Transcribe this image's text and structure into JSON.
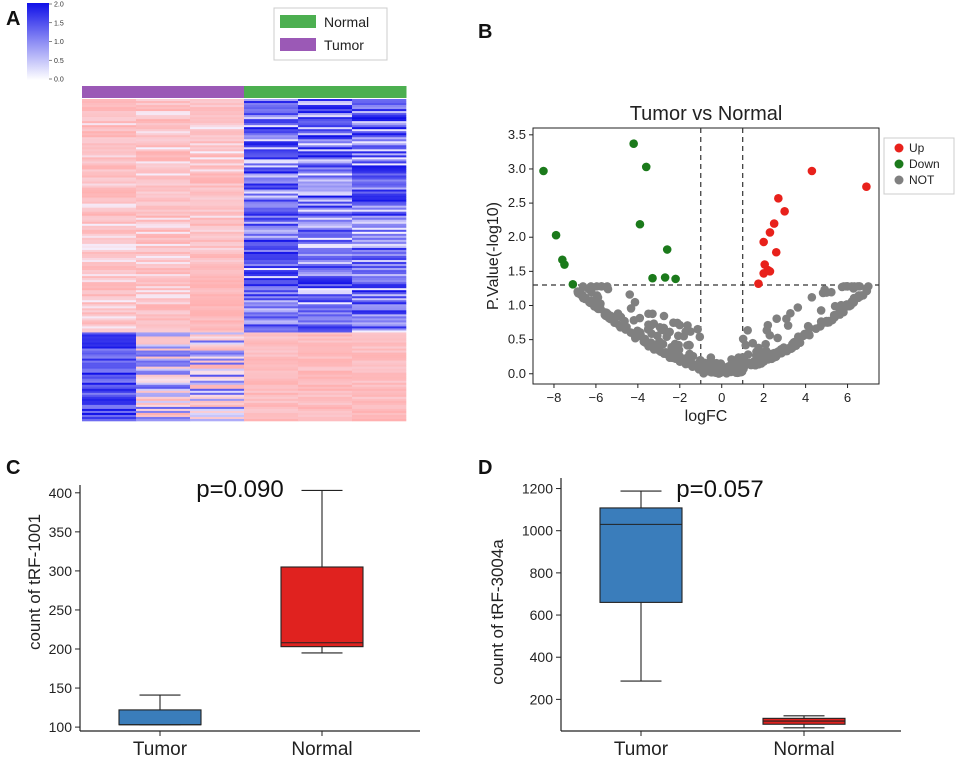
{
  "panels": {
    "a": "A",
    "b": "B",
    "c": "C",
    "d": "D"
  },
  "colors": {
    "normal": "#4caf50",
    "tumor": "#9b59b6",
    "heat_low": "#ff9f9f",
    "heat_high": "#1010e8",
    "up": "#e8211b",
    "down": "#1b7a1b",
    "not": "#808080",
    "box_tumor": "#3a7dbb",
    "box_normal": "#e0221f"
  },
  "chart_data": [
    {
      "type": "heatmap",
      "panel": "A",
      "colorbar": {
        "ticks": [
          "2.0",
          "1.5",
          "1.0",
          "0.5",
          "0.0"
        ],
        "range": [
          0,
          2
        ]
      },
      "legend": [
        {
          "label": "Normal",
          "color": "#4caf50"
        },
        {
          "label": "Tumor",
          "color": "#9b59b6"
        }
      ],
      "groups": [
        "Tumor",
        "Tumor",
        "Tumor",
        "Normal",
        "Normal",
        "Normal"
      ]
    },
    {
      "type": "scatter",
      "panel": "B",
      "title": "Tumor vs Normal",
      "xlabel": "logFC",
      "ylabel": "P.Value(-log10)",
      "xlim": [
        -9,
        7.5
      ],
      "ylim": [
        -0.15,
        3.6
      ],
      "xticks": [
        "−8",
        "−6",
        "−4",
        "−2",
        "0",
        "2",
        "4",
        "6"
      ],
      "xtick_values": [
        -8,
        -6,
        -4,
        -2,
        0,
        2,
        4,
        6
      ],
      "yticks": [
        "0.0",
        "0.5",
        "1.0",
        "1.5",
        "2.0",
        "2.5",
        "3.0",
        "3.5"
      ],
      "ytick_values": [
        0,
        0.5,
        1,
        1.5,
        2,
        2.5,
        3,
        3.5
      ],
      "thresholds": {
        "x": [
          -1,
          1
        ],
        "y": 1.3
      },
      "legend": [
        {
          "label": "Up",
          "color": "#e8211b"
        },
        {
          "label": "Down",
          "color": "#1b7a1b"
        },
        {
          "label": "NOT",
          "color": "#808080"
        }
      ],
      "series": [
        {
          "name": "Up",
          "points": [
            [
              4.3,
              2.97
            ],
            [
              6.9,
              2.74
            ],
            [
              2.7,
              2.57
            ],
            [
              3.0,
              2.38
            ],
            [
              2.5,
              2.2
            ],
            [
              2.3,
              2.07
            ],
            [
              2.0,
              1.93
            ],
            [
              2.6,
              1.78
            ],
            [
              2.05,
              1.6
            ],
            [
              2.2,
              1.52
            ],
            [
              2.0,
              1.47
            ],
            [
              2.3,
              1.5
            ],
            [
              1.75,
              1.32
            ]
          ]
        },
        {
          "name": "Down",
          "points": [
            [
              -8.5,
              2.97
            ],
            [
              -4.2,
              3.37
            ],
            [
              -3.6,
              3.03
            ],
            [
              -3.9,
              2.19
            ],
            [
              -7.9,
              2.03
            ],
            [
              -7.6,
              1.67
            ],
            [
              -7.5,
              1.6
            ],
            [
              -2.6,
              1.82
            ],
            [
              -3.3,
              1.4
            ],
            [
              -2.7,
              1.41
            ],
            [
              -2.2,
              1.39
            ],
            [
              -7.1,
              1.31
            ]
          ]
        },
        {
          "name": "NOT",
          "points": []
        }
      ]
    },
    {
      "type": "box",
      "panel": "C",
      "categories": [
        "Tumor",
        "Normal"
      ],
      "ylabel": "count of tRF-1001",
      "annotation": "p=0.090",
      "ylim": [
        95,
        410
      ],
      "yticks": [
        100,
        150,
        200,
        250,
        300,
        350,
        400
      ],
      "boxes": [
        {
          "name": "Tumor",
          "min": 103,
          "q1": 103,
          "median": 103,
          "q3": 122,
          "max": 141
        },
        {
          "name": "Normal",
          "min": 195,
          "q1": 203,
          "median": 208,
          "q3": 305,
          "max": 403
        }
      ]
    },
    {
      "type": "box",
      "panel": "D",
      "categories": [
        "Tumor",
        "Normal"
      ],
      "ylabel": "count of tRF-3004a",
      "annotation": "p=0.057",
      "ylim": [
        50,
        1250
      ],
      "yticks": [
        200,
        400,
        600,
        800,
        1000,
        1200
      ],
      "boxes": [
        {
          "name": "Tumor",
          "min": 287,
          "q1": 660,
          "median": 1030,
          "q3": 1108,
          "max": 1188
        },
        {
          "name": "Normal",
          "min": 65,
          "q1": 82,
          "median": 97,
          "q3": 110,
          "max": 122
        }
      ]
    }
  ]
}
